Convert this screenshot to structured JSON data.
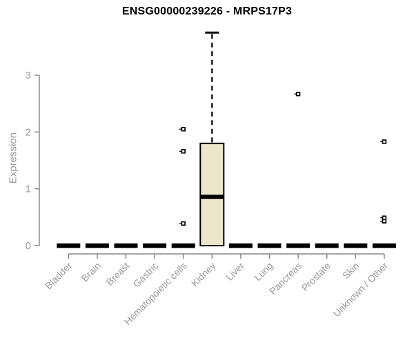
{
  "chart_data": {
    "type": "boxplot",
    "title": "ENSG00000239226 - MRPS17P3",
    "ylabel": "Expression",
    "xlabel": "",
    "yticks": [
      0,
      1,
      2,
      3
    ],
    "ylim": [
      0,
      3.9
    ],
    "grid": false,
    "legend": false,
    "categories": [
      "Bladder",
      "Brain",
      "Breast",
      "Gastric",
      "Hematopoietic cells",
      "Kidney",
      "Liver",
      "Lung",
      "Pancreas",
      "Prostate",
      "Skin",
      "Unknown / Other"
    ],
    "boxes": [
      {
        "category": "Bladder",
        "q1": 0,
        "median": 0,
        "q3": 0,
        "whisker_low": 0,
        "whisker_high": 0,
        "outliers": []
      },
      {
        "category": "Brain",
        "q1": 0,
        "median": 0,
        "q3": 0,
        "whisker_low": 0,
        "whisker_high": 0,
        "outliers": []
      },
      {
        "category": "Breast",
        "q1": 0,
        "median": 0,
        "q3": 0,
        "whisker_low": 0,
        "whisker_high": 0,
        "outliers": []
      },
      {
        "category": "Gastric",
        "q1": 0,
        "median": 0,
        "q3": 0,
        "whisker_low": 0,
        "whisker_high": 0,
        "outliers": []
      },
      {
        "category": "Hematopoietic cells",
        "q1": 0,
        "median": 0,
        "q3": 0,
        "whisker_low": 0,
        "whisker_high": 0,
        "outliers": [
          2.05,
          1.66,
          0.39
        ]
      },
      {
        "category": "Kidney",
        "q1": 0,
        "median": 0.86,
        "q3": 1.8,
        "whisker_low": 0,
        "whisker_high": 3.75,
        "outliers": []
      },
      {
        "category": "Liver",
        "q1": 0,
        "median": 0,
        "q3": 0,
        "whisker_low": 0,
        "whisker_high": 0,
        "outliers": []
      },
      {
        "category": "Lung",
        "q1": 0,
        "median": 0,
        "q3": 0,
        "whisker_low": 0,
        "whisker_high": 0,
        "outliers": []
      },
      {
        "category": "Pancreas",
        "q1": 0,
        "median": 0,
        "q3": 0,
        "whisker_low": 0,
        "whisker_high": 0,
        "outliers": [
          2.67
        ]
      },
      {
        "category": "Prostate",
        "q1": 0,
        "median": 0,
        "q3": 0,
        "whisker_low": 0,
        "whisker_high": 0,
        "outliers": []
      },
      {
        "category": "Skin",
        "q1": 0,
        "median": 0,
        "q3": 0,
        "whisker_low": 0,
        "whisker_high": 0,
        "outliers": []
      },
      {
        "category": "Unknown / Other",
        "q1": 0,
        "median": 0,
        "q3": 0,
        "whisker_low": 0,
        "whisker_high": 0,
        "outliers": [
          1.83,
          0.49,
          0.43
        ]
      }
    ],
    "colors": {
      "box_fill": "#ece7cc",
      "box_stroke": "#000000",
      "median": "#000000",
      "whisker": "#000000",
      "outlier": "#000000",
      "axis": "#888888",
      "tick_label": "#999999",
      "title": "#000000",
      "background": "#ffffff"
    }
  }
}
